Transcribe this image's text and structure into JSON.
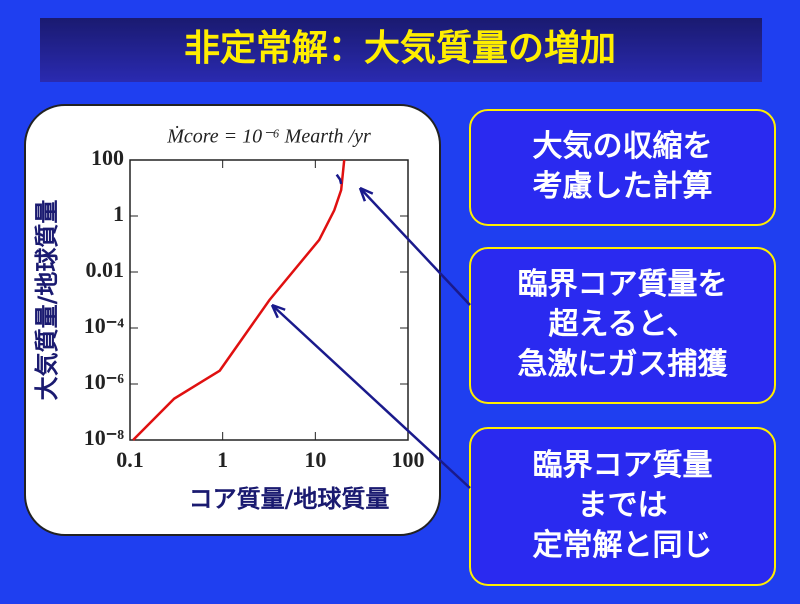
{
  "slide_title": "非定常解：大気質量の増加",
  "callouts": [
    {
      "lines": [
        "大気の収縮を",
        "考慮した計算"
      ]
    },
    {
      "lines": [
        "臨界コア質量を",
        "超えると、",
        "急激にガス捕獲"
      ]
    },
    {
      "lines": [
        "臨界コア質量",
        "までは",
        "定常解と同じ"
      ]
    }
  ],
  "chart_data": {
    "type": "line",
    "title": "Ṁcore = 10⁻⁶ Mearth /yr",
    "x_label": "コア質量/地球質量",
    "y_label": "大気質量/地球質量",
    "xlog": true,
    "ylog": true,
    "xlim": [
      0.1,
      100
    ],
    "ylim": [
      1e-08,
      100
    ],
    "xticks": [
      0.1,
      1,
      10,
      100
    ],
    "yticks": [
      {
        "value": 1e-08,
        "label": "10⁻⁸"
      },
      {
        "value": 1e-06,
        "label": "10⁻⁶"
      },
      {
        "value": 0.0001,
        "label": "10⁻⁴"
      },
      0.01,
      1,
      100
    ],
    "series": [
      {
        "color": "#e01010",
        "x": [
          0.108,
          0.3,
          0.93,
          3.2,
          11,
          16,
          19,
          20.5
        ],
        "values": [
          1e-08,
          3e-07,
          3e-06,
          0.001,
          0.14,
          1.6,
          8.5,
          100
        ]
      },
      {
        "color": "#1a1a8c",
        "x": [
          17,
          18.5,
          19
        ],
        "values": [
          30,
          20,
          14
        ]
      }
    ]
  }
}
